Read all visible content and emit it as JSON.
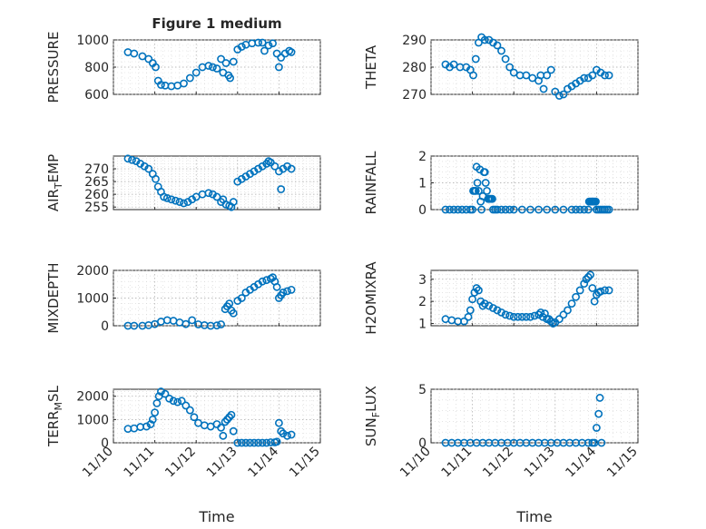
{
  "chart_data": [
    {
      "type": "scatter",
      "title": "Figure 1 medium",
      "ylabel": "PRESSURE",
      "xlabel": "",
      "xlim": [
        0,
        5
      ],
      "ylim": [
        600,
        1000
      ],
      "yticks": [
        600,
        800,
        1000
      ],
      "ytick_labels": [
        "600",
        "800",
        "1000"
      ],
      "xticks": [
        0,
        1,
        2,
        3,
        4,
        5
      ],
      "xtick_labels": [
        "11/10",
        "11/11",
        "11/12",
        "11/13",
        "11/14",
        "11/15"
      ],
      "show_xtick_labels": false,
      "x": [
        0.35,
        0.5,
        0.7,
        0.85,
        0.95,
        1.02,
        1.08,
        1.15,
        1.25,
        1.4,
        1.55,
        1.7,
        1.85,
        2.0,
        2.15,
        2.3,
        2.4,
        2.5,
        2.6,
        2.65,
        2.72,
        2.78,
        2.82,
        2.9,
        3.0,
        3.1,
        3.2,
        3.35,
        3.5,
        3.6,
        3.65,
        3.75,
        3.85,
        3.95,
        4.0,
        4.05,
        4.15,
        4.25,
        4.3
      ],
      "y": [
        910,
        900,
        880,
        860,
        830,
        800,
        700,
        670,
        665,
        660,
        665,
        680,
        720,
        760,
        800,
        810,
        800,
        790,
        860,
        760,
        830,
        740,
        720,
        840,
        930,
        950,
        965,
        975,
        980,
        980,
        920,
        960,
        975,
        900,
        800,
        870,
        900,
        920,
        910
      ]
    },
    {
      "type": "scatter",
      "title": "",
      "ylabel": "THETA",
      "xlabel": "",
      "xlim": [
        0,
        5
      ],
      "ylim": [
        270,
        290
      ],
      "yticks": [
        270,
        280,
        290
      ],
      "ytick_labels": [
        "270",
        "280",
        "290"
      ],
      "xticks": [
        0,
        1,
        2,
        3,
        4,
        5
      ],
      "xtick_labels": [
        "11/10",
        "11/11",
        "11/12",
        "11/13",
        "11/14",
        "11/15"
      ],
      "show_xtick_labels": false,
      "x": [
        0.35,
        0.45,
        0.55,
        0.7,
        0.85,
        0.95,
        1.02,
        1.08,
        1.15,
        1.22,
        1.3,
        1.4,
        1.5,
        1.6,
        1.7,
        1.8,
        1.9,
        2.0,
        2.15,
        2.3,
        2.45,
        2.6,
        2.65,
        2.72,
        2.8,
        2.9,
        3.0,
        3.1,
        3.2,
        3.3,
        3.4,
        3.5,
        3.6,
        3.7,
        3.8,
        3.9,
        4.0,
        4.1,
        4.2,
        4.3
      ],
      "y": [
        281,
        280,
        281,
        280,
        280,
        279,
        277,
        283,
        289,
        291,
        290,
        290,
        289,
        288,
        286,
        283,
        280,
        278,
        277,
        277,
        276,
        275,
        277,
        272,
        277,
        279,
        271,
        269.5,
        270,
        272,
        273,
        274,
        275,
        276,
        276,
        277,
        279,
        278,
        277,
        277
      ]
    },
    {
      "type": "scatter",
      "title": "",
      "ylabel": "AIR_TEMP",
      "xlabel": "",
      "xlim": [
        0,
        5
      ],
      "ylim": [
        254,
        275
      ],
      "yticks": [
        255,
        260,
        265,
        270
      ],
      "ytick_labels": [
        "255",
        "260",
        "265",
        "270"
      ],
      "xticks": [
        0,
        1,
        2,
        3,
        4,
        5
      ],
      "xtick_labels": [
        "11/10",
        "11/11",
        "11/12",
        "11/13",
        "11/14",
        "11/15"
      ],
      "show_xtick_labels": false,
      "x": [
        0.35,
        0.45,
        0.55,
        0.65,
        0.75,
        0.85,
        0.95,
        1.02,
        1.08,
        1.15,
        1.22,
        1.3,
        1.4,
        1.5,
        1.6,
        1.7,
        1.8,
        1.9,
        2.0,
        2.15,
        2.3,
        2.4,
        2.5,
        2.6,
        2.65,
        2.72,
        2.8,
        2.85,
        2.9,
        3.0,
        3.1,
        3.2,
        3.3,
        3.4,
        3.5,
        3.6,
        3.7,
        3.75,
        3.8,
        3.9,
        4.0,
        4.05,
        4.1,
        4.2,
        4.3
      ],
      "y": [
        274,
        273.5,
        273,
        272,
        271,
        270,
        268,
        266,
        263,
        261,
        259,
        258.5,
        258,
        257.5,
        257,
        256.5,
        257,
        258,
        259,
        260,
        260.5,
        260,
        259,
        257,
        258,
        256,
        255.5,
        255,
        257,
        265,
        266,
        267,
        268,
        269,
        270,
        271,
        272,
        273,
        272.5,
        271,
        269,
        262,
        270,
        271,
        270
      ]
    },
    {
      "type": "scatter",
      "title": "",
      "ylabel": "RAINFALL",
      "xlabel": "",
      "xlim": [
        0,
        5
      ],
      "ylim": [
        0,
        2
      ],
      "yticks": [
        0,
        1,
        2
      ],
      "ytick_labels": [
        "0",
        "1",
        "2"
      ],
      "xticks": [
        0,
        1,
        2,
        3,
        4,
        5
      ],
      "xtick_labels": [
        "11/10",
        "11/11",
        "11/12",
        "11/13",
        "11/14",
        "11/15"
      ],
      "show_xtick_labels": false,
      "x": [
        0.35,
        0.45,
        0.55,
        0.65,
        0.75,
        0.85,
        0.95,
        1.0,
        1.02,
        1.05,
        1.08,
        1.1,
        1.12,
        1.15,
        1.18,
        1.2,
        1.22,
        1.25,
        1.28,
        1.3,
        1.32,
        1.35,
        1.38,
        1.4,
        1.42,
        1.45,
        1.48,
        1.5,
        1.55,
        1.6,
        1.7,
        1.8,
        1.9,
        2.0,
        2.2,
        2.4,
        2.6,
        2.8,
        3.0,
        3.2,
        3.4,
        3.5,
        3.6,
        3.7,
        3.8,
        3.82,
        3.85,
        3.88,
        3.9,
        3.92,
        3.95,
        3.98,
        4.0,
        4.05,
        4.1,
        4.15,
        4.2,
        4.25,
        4.3
      ],
      "y": [
        0,
        0,
        0,
        0,
        0,
        0,
        0,
        0,
        0.7,
        0.7,
        0.7,
        1.6,
        1.0,
        0.7,
        1.5,
        0.3,
        0,
        0.5,
        1.4,
        1.4,
        1.0,
        0.7,
        0.4,
        0.4,
        0.4,
        0.4,
        0.4,
        0,
        0,
        0,
        0,
        0,
        0,
        0,
        0,
        0,
        0,
        0,
        0,
        0,
        0,
        0,
        0,
        0,
        0,
        0.3,
        0.3,
        0.3,
        0.3,
        0.3,
        0.3,
        0.3,
        0,
        0,
        0,
        0,
        0,
        0,
        0
      ]
    },
    {
      "type": "scatter",
      "title": "",
      "ylabel": "MIXDEPTH",
      "xlabel": "",
      "xlim": [
        0,
        5
      ],
      "ylim": [
        0,
        2000
      ],
      "yticks": [
        0,
        1000,
        2000
      ],
      "ytick_labels": [
        "0",
        "1000",
        "2000"
      ],
      "xticks": [
        0,
        1,
        2,
        3,
        4,
        5
      ],
      "xtick_labels": [
        "11/10",
        "11/11",
        "11/12",
        "11/13",
        "11/14",
        "11/15"
      ],
      "show_xtick_labels": false,
      "x": [
        0.35,
        0.5,
        0.7,
        0.85,
        1.0,
        1.15,
        1.3,
        1.45,
        1.6,
        1.75,
        1.9,
        2.05,
        2.2,
        2.35,
        2.5,
        2.6,
        2.7,
        2.75,
        2.8,
        2.85,
        2.9,
        3.0,
        3.1,
        3.2,
        3.3,
        3.4,
        3.5,
        3.6,
        3.7,
        3.8,
        3.85,
        3.9,
        3.95,
        4.0,
        4.05,
        4.1,
        4.2,
        4.3
      ],
      "y": [
        0,
        0,
        0,
        20,
        60,
        150,
        200,
        180,
        120,
        60,
        200,
        50,
        20,
        0,
        10,
        50,
        600,
        700,
        800,
        550,
        450,
        900,
        1000,
        1200,
        1300,
        1400,
        1500,
        1600,
        1650,
        1700,
        1750,
        1600,
        1400,
        1000,
        1100,
        1200,
        1250,
        1300
      ]
    },
    {
      "type": "scatter",
      "title": "",
      "ylabel": "H2OMIXRA",
      "xlabel": "",
      "xlim": [
        0,
        5
      ],
      "ylim": [
        0.9,
        3.4
      ],
      "yticks": [
        1,
        2,
        3
      ],
      "ytick_labels": [
        "1",
        "2",
        "3"
      ],
      "xticks": [
        0,
        1,
        2,
        3,
        4,
        5
      ],
      "xtick_labels": [
        "11/10",
        "11/11",
        "11/12",
        "11/13",
        "11/14",
        "11/15"
      ],
      "show_xtick_labels": false,
      "x": [
        0.35,
        0.5,
        0.65,
        0.8,
        0.9,
        0.95,
        1.0,
        1.05,
        1.1,
        1.15,
        1.2,
        1.25,
        1.3,
        1.4,
        1.5,
        1.6,
        1.7,
        1.8,
        1.9,
        2.0,
        2.1,
        2.2,
        2.3,
        2.4,
        2.5,
        2.6,
        2.65,
        2.7,
        2.75,
        2.8,
        2.85,
        2.9,
        2.95,
        3.0,
        3.1,
        3.2,
        3.3,
        3.4,
        3.5,
        3.6,
        3.7,
        3.75,
        3.8,
        3.85,
        3.9,
        3.95,
        4.0,
        4.05,
        4.1,
        4.2,
        4.3
      ],
      "y": [
        1.2,
        1.15,
        1.1,
        1.1,
        1.3,
        1.6,
        2.1,
        2.4,
        2.6,
        2.5,
        2.0,
        1.8,
        1.9,
        1.8,
        1.7,
        1.6,
        1.5,
        1.4,
        1.35,
        1.3,
        1.3,
        1.3,
        1.3,
        1.3,
        1.35,
        1.4,
        1.5,
        1.3,
        1.45,
        1.2,
        1.2,
        1.1,
        1.0,
        1.05,
        1.2,
        1.4,
        1.6,
        1.9,
        2.2,
        2.5,
        2.8,
        3.0,
        3.1,
        3.2,
        2.6,
        2.0,
        2.3,
        2.4,
        2.45,
        2.5,
        2.5
      ]
    },
    {
      "type": "scatter",
      "title": "",
      "ylabel": "TERR_MSL",
      "xlabel": "Time",
      "xlim": [
        0,
        5
      ],
      "ylim": [
        0,
        2300
      ],
      "yticks": [
        0,
        1000,
        2000
      ],
      "ytick_labels": [
        "0",
        "1000",
        "2000"
      ],
      "xticks": [
        0,
        1,
        2,
        3,
        4,
        5
      ],
      "xtick_labels": [
        "11/10",
        "11/11",
        "11/12",
        "11/13",
        "11/14",
        "11/15"
      ],
      "show_xtick_labels": true,
      "x": [
        0.35,
        0.5,
        0.65,
        0.8,
        0.9,
        0.95,
        1.0,
        1.05,
        1.1,
        1.15,
        1.25,
        1.35,
        1.45,
        1.55,
        1.65,
        1.75,
        1.85,
        1.95,
        2.05,
        2.2,
        2.35,
        2.5,
        2.6,
        2.65,
        2.7,
        2.75,
        2.8,
        2.85,
        2.9,
        3.0,
        3.1,
        3.2,
        3.3,
        3.4,
        3.5,
        3.6,
        3.7,
        3.8,
        3.9,
        3.95,
        4.0,
        4.05,
        4.1,
        4.2,
        4.3
      ],
      "y": [
        600,
        620,
        680,
        700,
        800,
        1000,
        1300,
        1700,
        2000,
        2200,
        2100,
        1900,
        1800,
        1750,
        1800,
        1600,
        1400,
        1100,
        850,
        750,
        700,
        800,
        650,
        300,
        900,
        1000,
        1100,
        1200,
        500,
        0,
        0,
        0,
        0,
        0,
        0,
        0,
        0,
        20,
        20,
        50,
        850,
        500,
        400,
        300,
        350
      ]
    },
    {
      "type": "scatter",
      "title": "",
      "ylabel": "SUN_FLUX",
      "xlabel": "Time",
      "xlim": [
        0,
        5
      ],
      "ylim": [
        0,
        5
      ],
      "yticks": [
        0,
        5
      ],
      "ytick_labels": [
        "0",
        "5"
      ],
      "xticks": [
        0,
        1,
        2,
        3,
        4,
        5
      ],
      "xtick_labels": [
        "11/10",
        "11/11",
        "11/12",
        "11/13",
        "11/14",
        "11/15"
      ],
      "show_xtick_labels": true,
      "x": [
        0.35,
        0.5,
        0.65,
        0.8,
        0.95,
        1.1,
        1.25,
        1.4,
        1.55,
        1.7,
        1.85,
        2.0,
        2.15,
        2.3,
        2.45,
        2.6,
        2.75,
        2.9,
        3.05,
        3.2,
        3.35,
        3.5,
        3.65,
        3.8,
        3.9,
        3.95,
        4.0,
        4.05,
        4.08,
        4.12
      ],
      "y": [
        0,
        0,
        0,
        0,
        0,
        0,
        0,
        0,
        0,
        0,
        0,
        0,
        0,
        0,
        0,
        0,
        0,
        0,
        0,
        0,
        0,
        0,
        0,
        0,
        0,
        0,
        1.4,
        2.7,
        4.2,
        0
      ]
    }
  ]
}
